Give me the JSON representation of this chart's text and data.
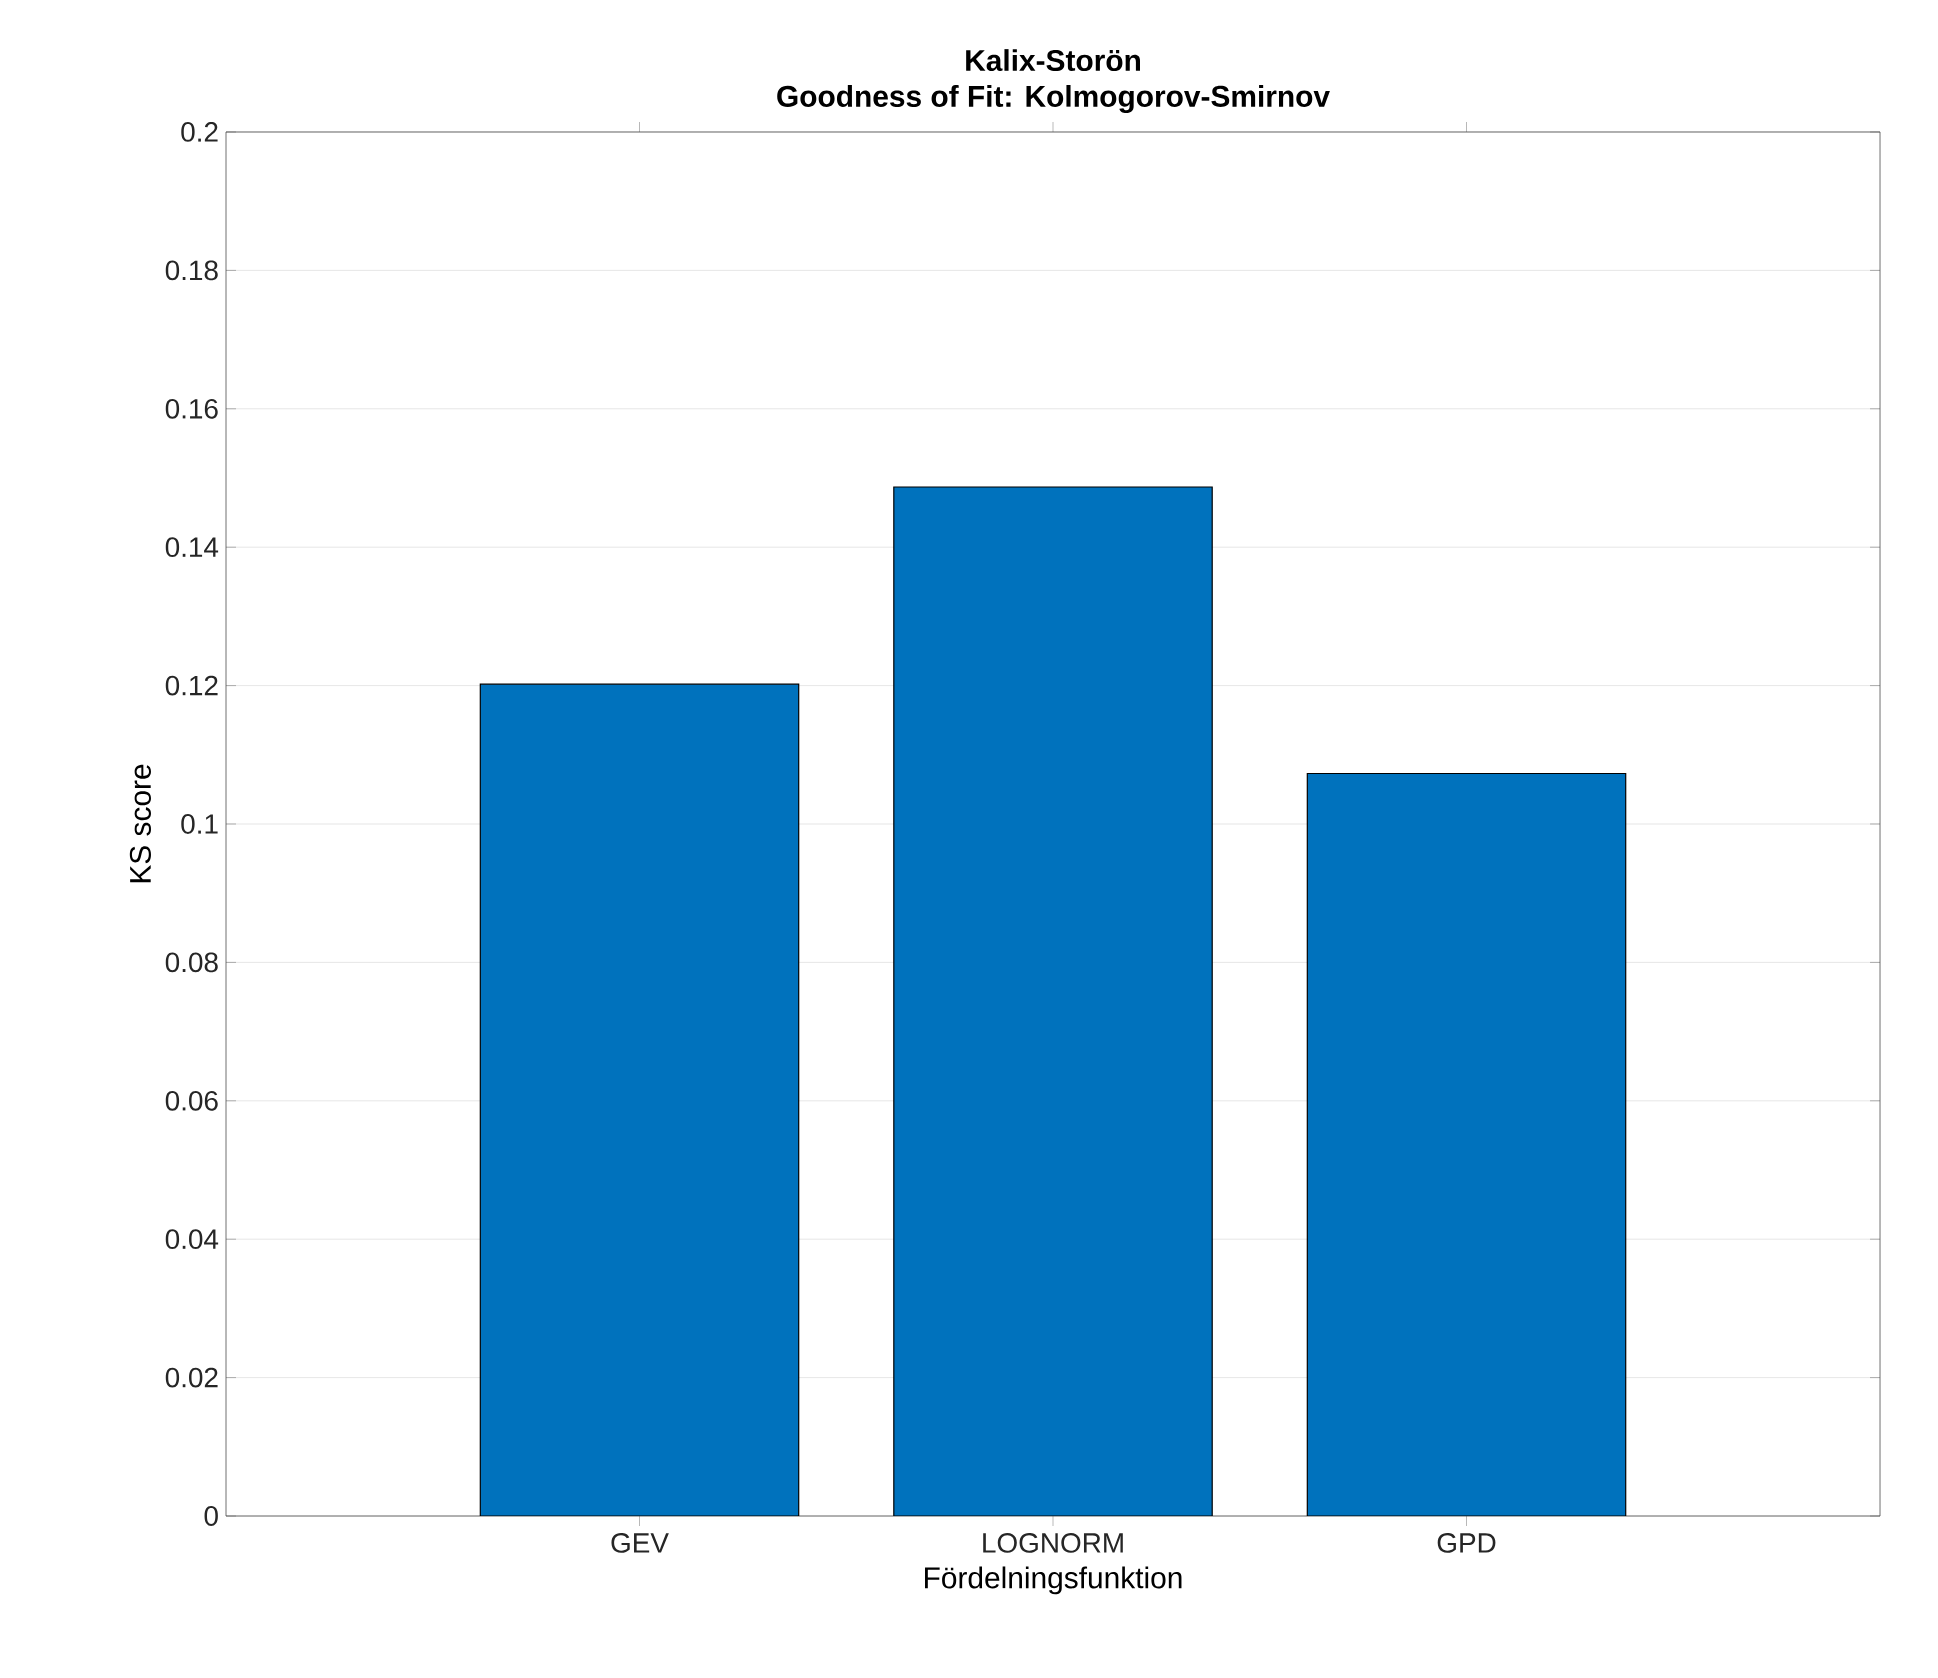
{
  "chart_data": {
    "type": "bar",
    "title": "Kalix-Storön\nGoodness of Fit: Kolmogorov-Smirnov",
    "xlabel": "Fördelningsfunktion",
    "ylabel": "KS score",
    "categories": [
      "GEV",
      "LOGNORM",
      "GPD"
    ],
    "values": [
      0.1202,
      0.1487,
      0.1073
    ],
    "color": "#0072bd",
    "ylim": [
      0,
      0.2
    ],
    "yticks": [
      0,
      0.02,
      0.04,
      0.06,
      0.08,
      0.1,
      0.12,
      0.14,
      0.16,
      0.18,
      0.2
    ],
    "grid": "y"
  }
}
